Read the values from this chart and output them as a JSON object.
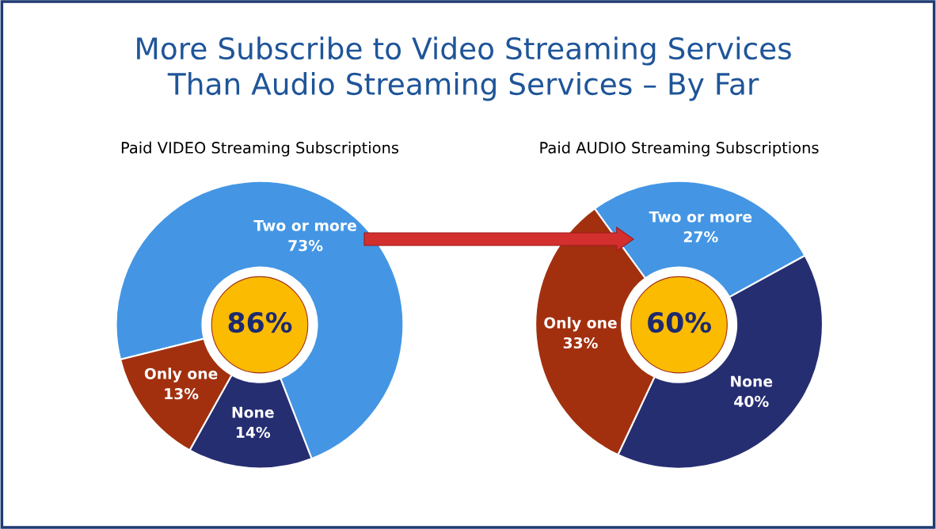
{
  "chart_data": [
    {
      "type": "donut",
      "title": "More Subscribe to Video Streaming Services\nThan Audio Streaming Services – By Far",
      "subtitle": "Paid VIDEO Streaming Subscriptions",
      "categories": [
        "Two or more",
        "None",
        "Only one"
      ],
      "values": [
        73,
        14,
        13
      ],
      "colors": [
        "#4496e4",
        "#262e72",
        "#a2300f"
      ],
      "value_labels": [
        "73%",
        "14%",
        "13%"
      ],
      "annotations": [
        "86%"
      ]
    },
    {
      "type": "donut",
      "subtitle": "Paid AUDIO Streaming Subscriptions",
      "categories": [
        "Two or more",
        "None",
        "Only one"
      ],
      "values": [
        27,
        40,
        33
      ],
      "colors": [
        "#4496e4",
        "#262e72",
        "#a2300f"
      ],
      "value_labels": [
        "27%",
        "40%",
        "33%"
      ],
      "annotations": [
        "60%"
      ]
    }
  ]
}
